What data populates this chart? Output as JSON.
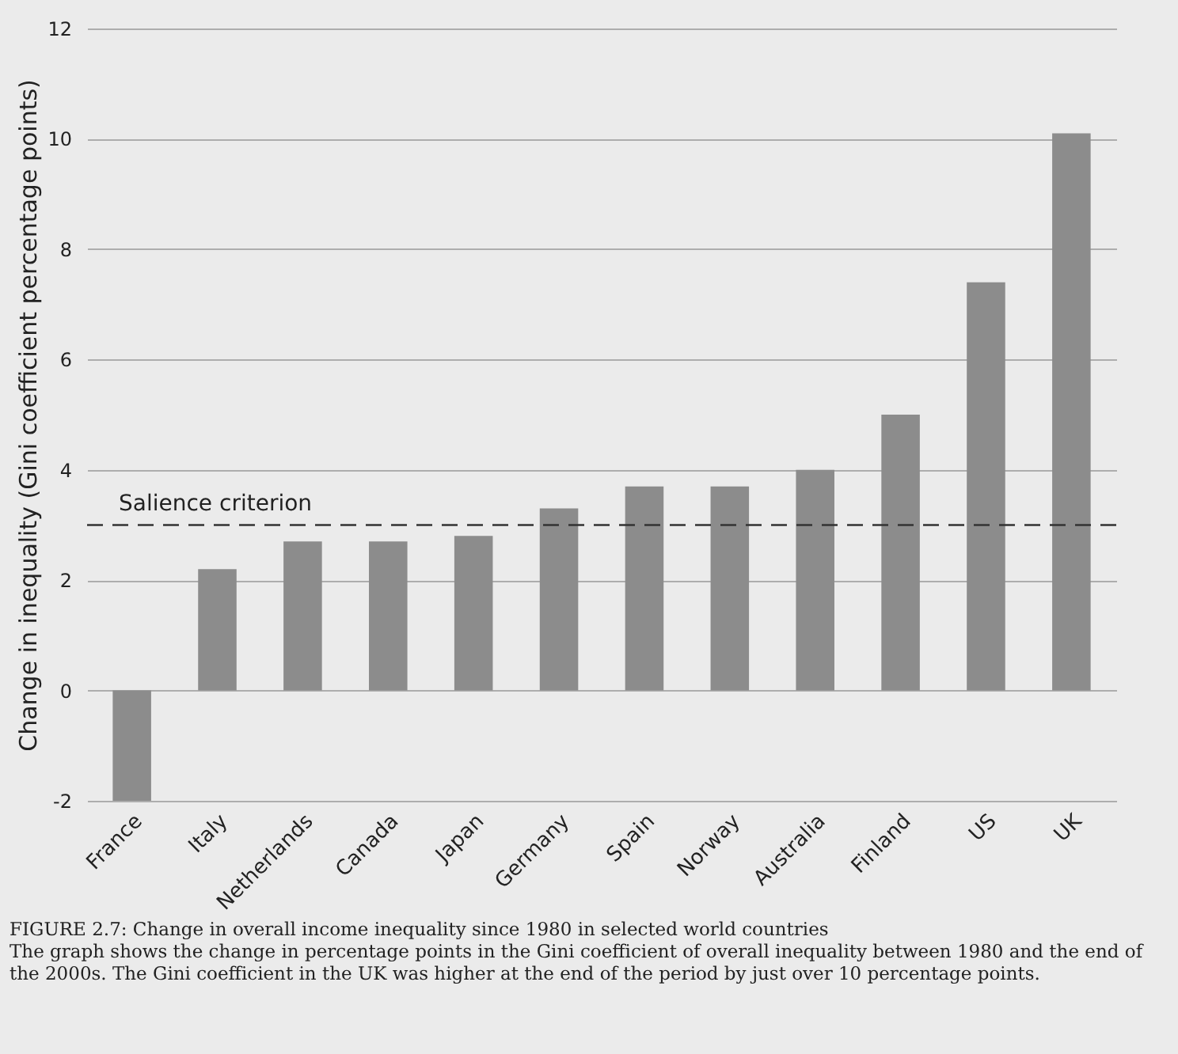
{
  "chart_data": {
    "type": "bar",
    "ylabel": "Change in inequality (Gini coefficient percentage points)",
    "categories": [
      "France",
      "Italy",
      "Netherlands",
      "Canada",
      "Japan",
      "Germany",
      "Spain",
      "Norway",
      "Australia",
      "Finland",
      "US",
      "UK"
    ],
    "values": [
      -2,
      2.2,
      2.7,
      2.7,
      2.8,
      3.3,
      3.7,
      3.7,
      4.0,
      5.0,
      7.4,
      10.1
    ],
    "color": "#8c8c8c",
    "ylim": [
      -2,
      12
    ],
    "yticks": [
      -2,
      0,
      2,
      4,
      6,
      8,
      10,
      12
    ],
    "grid": "y",
    "ref_lines": [
      {
        "axis": "y",
        "value": 3,
        "label": "Salience criterion",
        "line_style": "dashed",
        "color": "#333333"
      }
    ],
    "annotations": [
      "FIGURE 2.7: Change in overall income inequality since 1980 in selected world countries",
      "The graph shows the change in percentage points in the Gini coefficient of overall inequality between 1980 and the end of the 2000s. The Gini coefficient in the UK was higher at the end of the period by just over 10 percentage points."
    ]
  }
}
